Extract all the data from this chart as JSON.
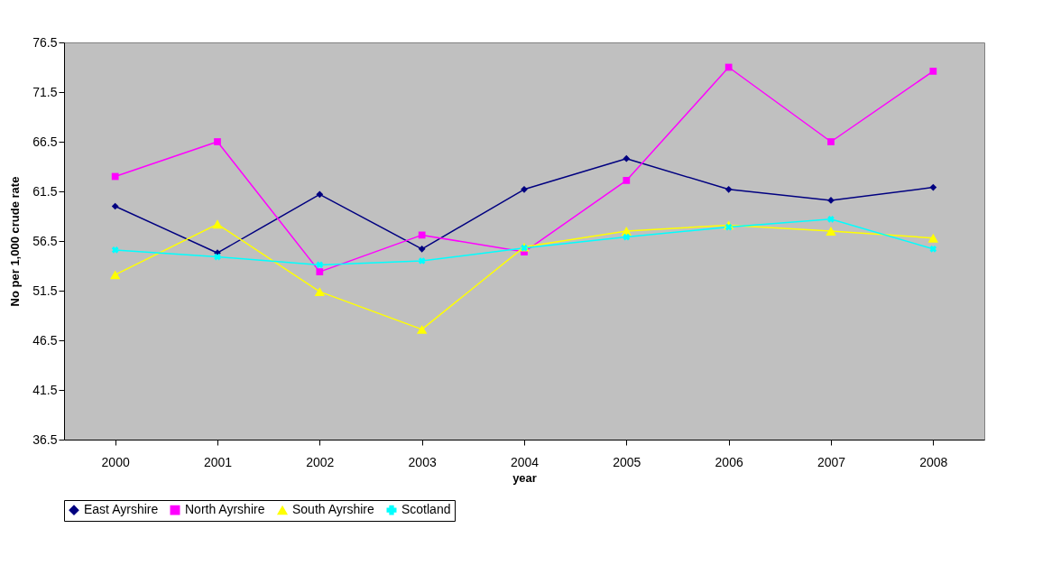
{
  "chart_data": {
    "type": "line",
    "xlabel": "year",
    "ylabel": "No per 1,000 crude rate",
    "categories": [
      "2000",
      "2001",
      "2002",
      "2003",
      "2004",
      "2005",
      "2006",
      "2007",
      "2008"
    ],
    "series": [
      {
        "name": "East Ayrshire",
        "color": "#000080",
        "marker": "diamond",
        "values": [
          60.0,
          55.3,
          61.2,
          55.7,
          61.7,
          64.8,
          61.7,
          60.6,
          61.9
        ]
      },
      {
        "name": "North Ayrshire",
        "color": "#ff00ff",
        "marker": "square",
        "values": [
          63.0,
          66.5,
          53.4,
          57.1,
          55.4,
          62.6,
          74.0,
          66.5,
          73.6
        ]
      },
      {
        "name": "South Ayrshire",
        "color": "#ffff00",
        "marker": "triangle",
        "values": [
          53.1,
          58.2,
          51.4,
          47.6,
          55.9,
          57.5,
          58.1,
          57.5,
          56.8
        ]
      },
      {
        "name": "Scotland",
        "color": "#00ffff",
        "marker": "cross",
        "values": [
          55.6,
          54.9,
          54.1,
          54.5,
          55.8,
          56.9,
          57.9,
          58.7,
          55.7
        ]
      }
    ],
    "ylim": [
      36.5,
      76.5
    ],
    "yticks": [
      36.5,
      41.5,
      46.5,
      51.5,
      56.5,
      61.5,
      66.5,
      71.5,
      76.5
    ],
    "grid": false,
    "legend": "bottom",
    "line_style": "solid"
  }
}
